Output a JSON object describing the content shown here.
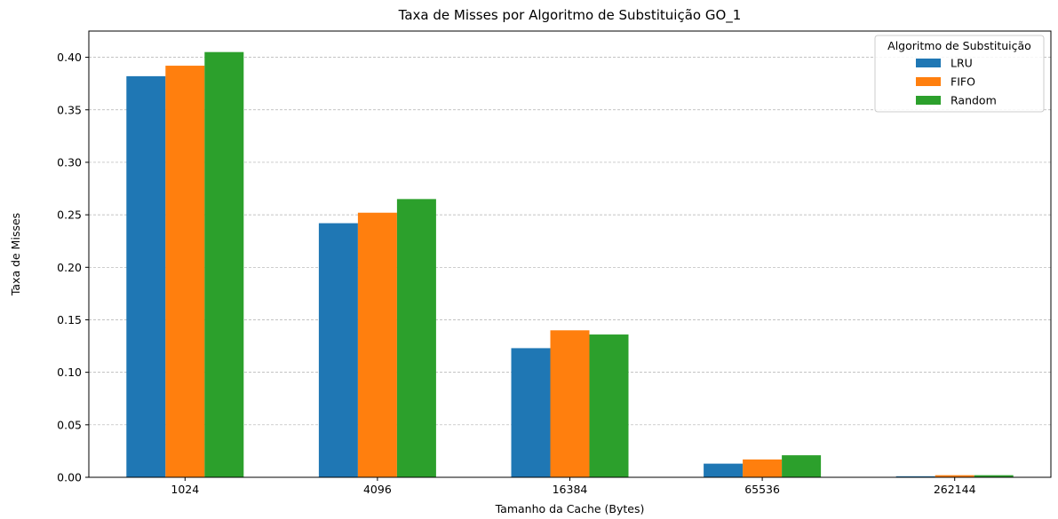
{
  "chart_data": {
    "type": "bar",
    "title": "Taxa de Misses por Algoritmo de Substituição GO_1",
    "xlabel": "Tamanho da Cache (Bytes)",
    "ylabel": "Taxa de Misses",
    "categories": [
      "1024",
      "4096",
      "16384",
      "65536",
      "262144"
    ],
    "series": [
      {
        "name": "LRU",
        "color": "#1f77b4",
        "values": [
          0.382,
          0.242,
          0.123,
          0.013,
          0.001
        ]
      },
      {
        "name": "FIFO",
        "color": "#ff7f0e",
        "values": [
          0.392,
          0.252,
          0.14,
          0.017,
          0.002
        ]
      },
      {
        "name": "Random",
        "color": "#2ca02c",
        "values": [
          0.405,
          0.265,
          0.136,
          0.021,
          0.002
        ]
      }
    ],
    "ylim": [
      0,
      0.425
    ],
    "yticks": [
      "0.00",
      "0.05",
      "0.10",
      "0.15",
      "0.20",
      "0.25",
      "0.30",
      "0.35",
      "0.40"
    ],
    "grid": "y-dashed",
    "legend": {
      "title": "Algoritmo de Substituição",
      "placement": "top-right"
    }
  }
}
